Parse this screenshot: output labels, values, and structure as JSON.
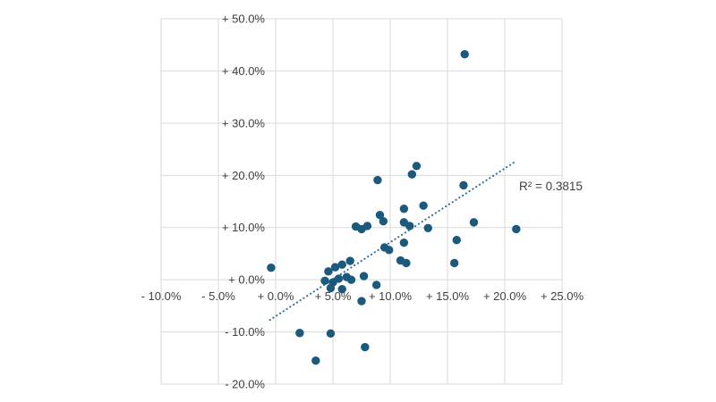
{
  "chart_data": {
    "type": "scatter",
    "title": "",
    "xlabel": "",
    "ylabel": "",
    "legend": "none",
    "grid": true,
    "x_axis": {
      "min": -10,
      "max": 25,
      "step": 5,
      "tick_labels": [
        "- 10.0%",
        "- 5.0%",
        "+ 0.0%",
        "+ 5.0%",
        "+ 10.0%",
        "+ 15.0%",
        "+ 20.0%",
        "+ 25.0%"
      ]
    },
    "y_axis": {
      "min": -20,
      "max": 50,
      "step": 10,
      "tick_labels": [
        "+ 50.0%",
        "+ 40.0%",
        "+ 30.0%",
        "+ 20.0%",
        "+ 10.0%",
        "+ 0.0%",
        "- 10.0%",
        "- 20.0%"
      ]
    },
    "points": [
      [
        16.5,
        43.2
      ],
      [
        12.3,
        21.8
      ],
      [
        11.9,
        20.2
      ],
      [
        8.9,
        19.1
      ],
      [
        16.4,
        18.1
      ],
      [
        12.9,
        14.2
      ],
      [
        11.2,
        13.6
      ],
      [
        9.1,
        12.4
      ],
      [
        9.4,
        11.2
      ],
      [
        11.2,
        11.0
      ],
      [
        11.7,
        10.3
      ],
      [
        17.3,
        11.0
      ],
      [
        7.0,
        10.2
      ],
      [
        7.5,
        9.7
      ],
      [
        8.0,
        10.3
      ],
      [
        13.3,
        9.9
      ],
      [
        21.0,
        9.7
      ],
      [
        15.8,
        7.6
      ],
      [
        11.2,
        7.1
      ],
      [
        9.5,
        6.2
      ],
      [
        9.9,
        5.7
      ],
      [
        -0.4,
        2.3
      ],
      [
        4.6,
        1.6
      ],
      [
        5.2,
        2.4
      ],
      [
        5.8,
        2.9
      ],
      [
        6.5,
        3.6
      ],
      [
        10.9,
        3.7
      ],
      [
        11.4,
        3.2
      ],
      [
        15.6,
        3.2
      ],
      [
        7.7,
        0.7
      ],
      [
        4.3,
        -0.2
      ],
      [
        5.0,
        -0.5
      ],
      [
        5.5,
        0.2
      ],
      [
        6.2,
        0.5
      ],
      [
        6.6,
        0.0
      ],
      [
        4.8,
        -1.6
      ],
      [
        5.8,
        -1.8
      ],
      [
        8.8,
        -1.0
      ],
      [
        7.5,
        -4.1
      ],
      [
        2.1,
        -10.2
      ],
      [
        4.8,
        -10.3
      ],
      [
        7.8,
        -12.9
      ],
      [
        3.5,
        -15.5
      ]
    ],
    "trendline": {
      "style": "dotted",
      "x_start": -0.5,
      "y_start": -7.7,
      "x_end": 20.9,
      "y_end": 22.6
    },
    "r_squared": 0.3815,
    "r2_label": "R² = 0.3815",
    "colors": {
      "point": "#1b5a7c",
      "trendline": "#2a6d97",
      "gridline": "#d9d9d9",
      "text": "#3f3f3f",
      "background": "#ffffff"
    }
  }
}
